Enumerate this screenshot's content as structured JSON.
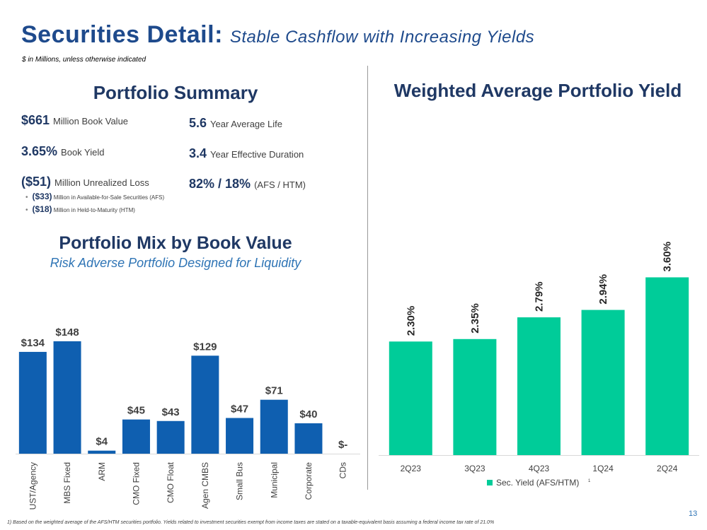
{
  "header": {
    "title_main": "Securities Detail:",
    "title_sub": "Stable Cashflow with Increasing Yields",
    "subtitle": "$ in Millions, unless otherwise indicated"
  },
  "summary": {
    "heading": "Portfolio Summary",
    "book_value": {
      "value": "$661",
      "label": "Million Book Value"
    },
    "book_yield": {
      "value": "3.65%",
      "label": "Book Yield"
    },
    "unrealized": {
      "value": "($51)",
      "label": "Million Unrealized Loss"
    },
    "afs_loss": {
      "value": "($33)",
      "label": "Million in Available-for-Sale Securities (AFS)"
    },
    "htm_loss": {
      "value": "($18)",
      "label": "Million in Held-to-Maturity (HTM)"
    },
    "avg_life": {
      "value": "5.6",
      "label": "Year Average Life"
    },
    "duration": {
      "value": "3.4",
      "label": "Year Effective Duration"
    },
    "afs_htm": {
      "value": "82% / 18%",
      "label": "(AFS / HTM)"
    }
  },
  "mix": {
    "heading": "Portfolio Mix by Book Value",
    "subheading": "Risk Adverse Portfolio Designed for Liquidity"
  },
  "yield_panel": {
    "heading": "Weighted Average Portfolio Yield"
  },
  "chart_data": [
    {
      "type": "bar",
      "title": "Portfolio Mix by Book Value",
      "categories": [
        "UST/Agency",
        "MBS Fixed",
        "ARM",
        "CMO Fixed",
        "CMO Float",
        "Agen CMBS",
        "Small Bus",
        "Municipal",
        "Corporate",
        "CDs"
      ],
      "values": [
        134,
        148,
        4,
        45,
        43,
        129,
        47,
        71,
        40,
        0
      ],
      "labels": [
        "$134",
        "$148",
        "$4",
        "$45",
        "$43",
        "$129",
        "$47",
        "$71",
        "$40",
        "$-"
      ],
      "color": "#0f5fb0",
      "ylim": [
        0,
        160
      ],
      "grid": false
    },
    {
      "type": "bar",
      "title": "Weighted Average Portfolio Yield",
      "categories": [
        "2Q23",
        "3Q23",
        "4Q23",
        "1Q24",
        "2Q24"
      ],
      "series": [
        {
          "name": "Sec. Yield (AFS/HTM)",
          "values": [
            2.3,
            2.35,
            2.79,
            2.94,
            3.6
          ]
        }
      ],
      "labels": [
        "2.30%",
        "2.35%",
        "2.79%",
        "2.94%",
        "3.60%"
      ],
      "legend_note": "1",
      "color": "#00cc99",
      "ylim": [
        0,
        3.95
      ],
      "grid": false,
      "legend": "bottom"
    }
  ],
  "footnote": "1)  Based on the weighted average of the AFS/HTM securities portfolio. Yields related to investment securities exempt from income taxes are stated on a taxable-equivalent basis assuming a federal income tax rate of 21.0%",
  "page_number": "13"
}
